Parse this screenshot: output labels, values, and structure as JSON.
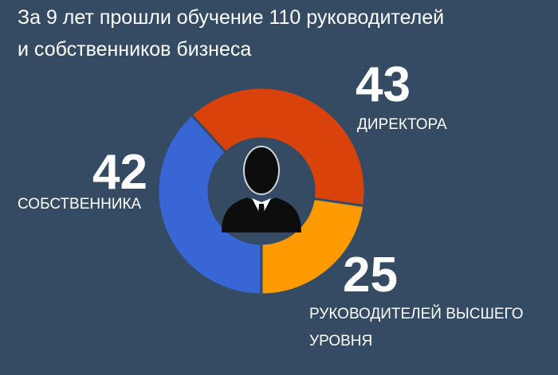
{
  "chart_data": {
    "type": "donut",
    "title": "За 9 лет прошли обучение 110 руководителей\nи собственников бизнеса",
    "categories": [
      "ДИРЕКТОРА",
      "РУКОВОДИТЕЛЕЙ ВЫСШЕГО УРОВНЯ",
      "СОБСТВЕННИКА"
    ],
    "values": [
      43,
      25,
      42
    ],
    "colors": [
      "#d9420b",
      "#ff9b00",
      "#3866d4"
    ]
  }
}
